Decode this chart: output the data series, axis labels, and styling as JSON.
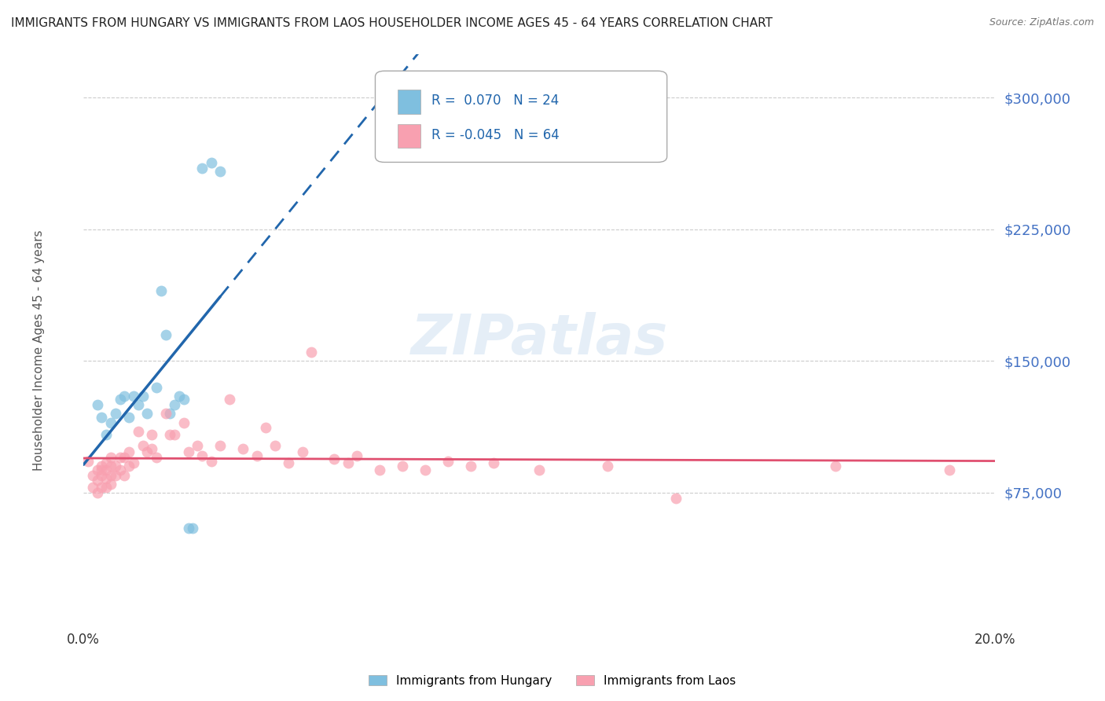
{
  "title": "IMMIGRANTS FROM HUNGARY VS IMMIGRANTS FROM LAOS HOUSEHOLDER INCOME AGES 45 - 64 YEARS CORRELATION CHART",
  "source": "Source: ZipAtlas.com",
  "ylabel": "Householder Income Ages 45 - 64 years",
  "xlim": [
    0.0,
    0.2
  ],
  "ylim": [
    0,
    325000
  ],
  "yticks": [
    75000,
    150000,
    225000,
    300000
  ],
  "ytick_labels": [
    "$75,000",
    "$150,000",
    "$225,000",
    "$300,000"
  ],
  "xticks": [
    0.0,
    0.02,
    0.04,
    0.06,
    0.08,
    0.1,
    0.12,
    0.14,
    0.16,
    0.18,
    0.2
  ],
  "xtick_labels": [
    "0.0%",
    "",
    "",
    "",
    "",
    "",
    "",
    "",
    "",
    "",
    "20.0%"
  ],
  "hungary_R": 0.07,
  "hungary_N": 24,
  "laos_R": -0.045,
  "laos_N": 64,
  "hungary_color": "#7fbfdf",
  "laos_color": "#f8a0b0",
  "hungary_line_color": "#2166ac",
  "laos_line_color": "#e05070",
  "background_color": "#ffffff",
  "grid_color": "#cccccc",
  "hungary_scatter_x": [
    0.003,
    0.004,
    0.005,
    0.006,
    0.007,
    0.008,
    0.009,
    0.01,
    0.011,
    0.012,
    0.013,
    0.014,
    0.016,
    0.017,
    0.018,
    0.019,
    0.02,
    0.021,
    0.022,
    0.023,
    0.024,
    0.026,
    0.028,
    0.03
  ],
  "hungary_scatter_y": [
    125000,
    118000,
    108000,
    115000,
    120000,
    128000,
    130000,
    118000,
    130000,
    125000,
    130000,
    120000,
    135000,
    190000,
    165000,
    120000,
    125000,
    130000,
    128000,
    55000,
    55000,
    260000,
    263000,
    258000
  ],
  "laos_scatter_x": [
    0.001,
    0.002,
    0.002,
    0.003,
    0.003,
    0.003,
    0.004,
    0.004,
    0.004,
    0.004,
    0.005,
    0.005,
    0.005,
    0.005,
    0.006,
    0.006,
    0.006,
    0.006,
    0.007,
    0.007,
    0.008,
    0.008,
    0.009,
    0.009,
    0.01,
    0.01,
    0.011,
    0.012,
    0.013,
    0.014,
    0.015,
    0.015,
    0.016,
    0.018,
    0.019,
    0.02,
    0.022,
    0.023,
    0.025,
    0.026,
    0.028,
    0.03,
    0.032,
    0.035,
    0.038,
    0.04,
    0.042,
    0.045,
    0.048,
    0.05,
    0.055,
    0.058,
    0.06,
    0.065,
    0.07,
    0.075,
    0.08,
    0.085,
    0.09,
    0.1,
    0.115,
    0.13,
    0.165,
    0.19
  ],
  "laos_scatter_y": [
    93000,
    85000,
    78000,
    88000,
    82000,
    75000,
    90000,
    85000,
    88000,
    78000,
    92000,
    88000,
    83000,
    78000,
    95000,
    90000,
    85000,
    80000,
    90000,
    85000,
    95000,
    88000,
    95000,
    85000,
    98000,
    90000,
    92000,
    110000,
    102000,
    98000,
    108000,
    100000,
    95000,
    120000,
    108000,
    108000,
    115000,
    98000,
    102000,
    96000,
    93000,
    102000,
    128000,
    100000,
    96000,
    112000,
    102000,
    92000,
    98000,
    155000,
    94000,
    92000,
    96000,
    88000,
    90000,
    88000,
    93000,
    90000,
    92000,
    88000,
    90000,
    72000,
    90000,
    88000
  ]
}
